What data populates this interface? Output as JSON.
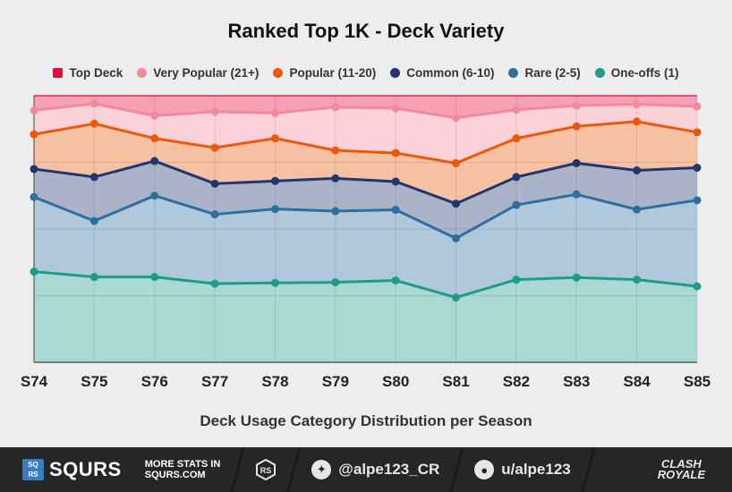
{
  "chart_data": {
    "type": "area",
    "title": "Ranked Top 1K - Deck Variety",
    "xlabel": "Deck Usage Category Distribution per Season",
    "categories": [
      "S74",
      "S75",
      "S76",
      "S77",
      "S78",
      "S79",
      "S80",
      "S81",
      "S82",
      "S83",
      "S84",
      "S85"
    ],
    "ylim": [
      0,
      100
    ],
    "stacked": true,
    "grid": true,
    "legend_position": "top",
    "series": [
      {
        "name": "One-offs (1)",
        "color": "#1e9c8a",
        "marker": "circle",
        "values": [
          34,
          32,
          32,
          29.5,
          29.8,
          30,
          30.7,
          24.3,
          31,
          31.8,
          31,
          28.5
        ]
      },
      {
        "name": "Rare (2-5)",
        "color": "#2f6f9f",
        "marker": "circle",
        "values": [
          62,
          53,
          62.5,
          55.5,
          57.5,
          56.7,
          57.2,
          46.5,
          59,
          63,
          57.3,
          60.8
        ]
      },
      {
        "name": "Common (6-10)",
        "color": "#22366e",
        "marker": "circle",
        "values": [
          72.5,
          69.5,
          75.5,
          67,
          68,
          69,
          67.8,
          59.5,
          69.5,
          74.7,
          72,
          73
        ]
      },
      {
        "name": "Popular (11-20)",
        "color": "#e8590c",
        "marker": "circle",
        "values": [
          85.5,
          89.5,
          84,
          80.5,
          84,
          79.5,
          78.5,
          74.7,
          84,
          88.5,
          90.3,
          86.3
        ]
      },
      {
        "name": "Very Popular (21+)",
        "color": "#f4899b",
        "marker": "circle",
        "values": [
          94.5,
          97,
          92.5,
          94,
          93.5,
          95.7,
          95.3,
          91.7,
          94.7,
          96.3,
          96.8,
          96
        ]
      },
      {
        "name": "Top Deck",
        "color": "#e8063c",
        "marker": "square",
        "values": [
          100,
          100,
          100,
          100,
          100,
          100,
          100,
          100,
          100,
          100,
          100,
          100
        ]
      }
    ]
  },
  "legend_order": [
    5,
    4,
    3,
    2,
    1,
    0
  ],
  "footer": {
    "brand": "SQURS",
    "badge_top": "SQ",
    "badge_bottom": "RS",
    "more_line1": "MORE STATS IN",
    "more_line2": "SQURS.COM",
    "twitter": "@alpe123_CR",
    "reddit": "u/alpe123",
    "game_line1": "CLASH",
    "game_line2": "ROYALE"
  }
}
